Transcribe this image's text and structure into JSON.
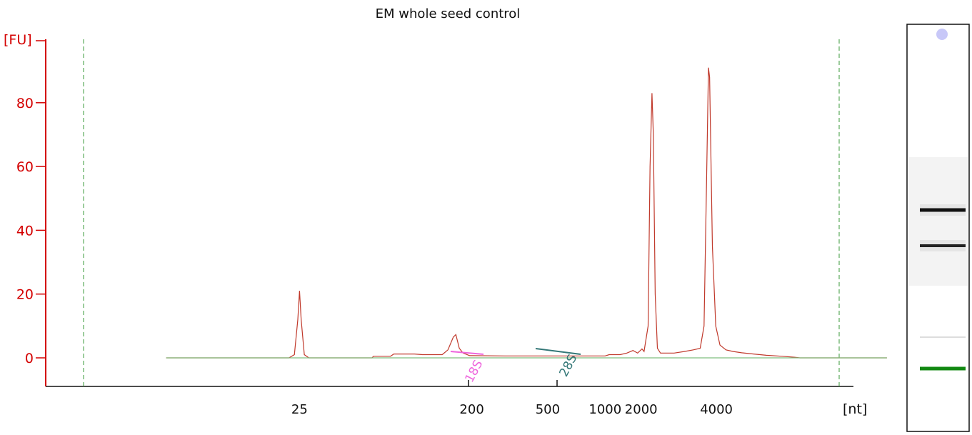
{
  "chart_data": {
    "type": "line",
    "title": "EM whole seed control",
    "ylabel": "[FU]",
    "xlabel": "[nt]",
    "ylim": [
      -9,
      100
    ],
    "y_ticks": [
      0,
      20,
      40,
      60,
      80
    ],
    "x_scale": "log",
    "x_ticks": [
      25,
      200,
      500,
      1000,
      2000,
      4000
    ],
    "x_markers": [
      25,
      200,
      4000
    ],
    "grid": false,
    "series": [
      {
        "color": "#c0392b",
        "points": [
          [
            5,
            0
          ],
          [
            22,
            0
          ],
          [
            23.5,
            1
          ],
          [
            24.5,
            12
          ],
          [
            25,
            21
          ],
          [
            25.5,
            12
          ],
          [
            26.5,
            1
          ],
          [
            28,
            0
          ],
          [
            60,
            0
          ],
          [
            61,
            0.5
          ],
          [
            75,
            0.5
          ],
          [
            78,
            1.2
          ],
          [
            100,
            1.2
          ],
          [
            110,
            1
          ],
          [
            140,
            1
          ],
          [
            150,
            2.5
          ],
          [
            160,
            6.5
          ],
          [
            165,
            7.3
          ],
          [
            172,
            3
          ],
          [
            180,
            1.5
          ],
          [
            195,
            0.7
          ],
          [
            300,
            0.6
          ],
          [
            420,
            0.6
          ],
          [
            700,
            0.6
          ],
          [
            1000,
            0.6
          ],
          [
            1050,
            1
          ],
          [
            1200,
            1
          ],
          [
            1300,
            1.5
          ],
          [
            1400,
            2.3
          ],
          [
            1480,
            1.5
          ],
          [
            1560,
            2.8
          ],
          [
            1600,
            2
          ],
          [
            1680,
            10
          ],
          [
            1720,
            60
          ],
          [
            1760,
            83
          ],
          [
            1790,
            70
          ],
          [
            1830,
            20
          ],
          [
            1880,
            3
          ],
          [
            1950,
            1.5
          ],
          [
            2300,
            1.5
          ],
          [
            2600,
            2
          ],
          [
            2900,
            2.5
          ],
          [
            3150,
            3
          ],
          [
            3300,
            10
          ],
          [
            3400,
            55
          ],
          [
            3480,
            91
          ],
          [
            3530,
            88
          ],
          [
            3650,
            35
          ],
          [
            3800,
            10
          ],
          [
            4000,
            4
          ],
          [
            4300,
            2.5
          ],
          [
            4700,
            2
          ],
          [
            5200,
            1.6
          ],
          [
            6000,
            1.2
          ],
          [
            7000,
            0.8
          ],
          [
            8500,
            0.5
          ],
          [
            9800,
            0.2
          ],
          [
            10500,
            0
          ],
          [
            30000,
            0
          ]
        ]
      },
      {
        "color": "#7fbf7f",
        "points": [
          [
            5,
            0
          ],
          [
            30000,
            0
          ]
        ]
      }
    ],
    "peaks": [
      {
        "label": "18S",
        "color": "#ee66dd",
        "tick": 1950,
        "from": 1650,
        "to": 1920
      },
      {
        "label": "28S",
        "color": "#337777",
        "tick": 3650,
        "from": 3100,
        "to": 4350
      }
    ]
  },
  "gel_lane": {
    "bands": [
      {
        "fu": 91,
        "color": "#111111"
      },
      {
        "fu": 83,
        "color": "#222222"
      },
      {
        "fu": 2,
        "color": "#dddddd"
      },
      {
        "fu": 21,
        "color": "#118811"
      }
    ],
    "marker_dot_color": "#c8c8f8"
  }
}
